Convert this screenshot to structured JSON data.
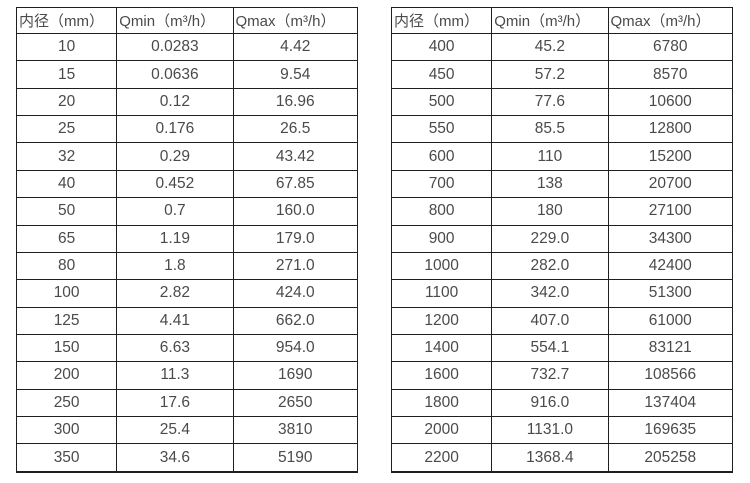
{
  "page": {
    "background_color": "#ffffff",
    "text_color": "#4a4a4a",
    "border_color": "#1f1f1f"
  },
  "tables": [
    {
      "name": "flow-rate-table-left",
      "headers": [
        "内径（mm）",
        "Qmin（m³/h）",
        "Qmax（m³/h）"
      ],
      "rows": [
        [
          "10",
          "0.0283",
          "4.42"
        ],
        [
          "15",
          "0.0636",
          "9.54"
        ],
        [
          "20",
          "0.12",
          "16.96"
        ],
        [
          "25",
          "0.176",
          "26.5"
        ],
        [
          "32",
          "0.29",
          "43.42"
        ],
        [
          "40",
          "0.452",
          "67.85"
        ],
        [
          "50",
          "0.7",
          "160.0"
        ],
        [
          "65",
          "1.19",
          "179.0"
        ],
        [
          "80",
          "1.8",
          "271.0"
        ],
        [
          "100",
          "2.82",
          "424.0"
        ],
        [
          "125",
          "4.41",
          "662.0"
        ],
        [
          "150",
          "6.63",
          "954.0"
        ],
        [
          "200",
          "11.3",
          "1690"
        ],
        [
          "250",
          "17.6",
          "2650"
        ],
        [
          "300",
          "25.4",
          "3810"
        ],
        [
          "350",
          "34.6",
          "5190"
        ]
      ]
    },
    {
      "name": "flow-rate-table-right",
      "headers": [
        "内径（mm）",
        "Qmin（m³/h）",
        "Qmax（m³/h）"
      ],
      "rows": [
        [
          "400",
          "45.2",
          "6780"
        ],
        [
          "450",
          "57.2",
          "8570"
        ],
        [
          "500",
          "77.6",
          "10600"
        ],
        [
          "550",
          "85.5",
          "12800"
        ],
        [
          "600",
          "110",
          "15200"
        ],
        [
          "700",
          "138",
          "20700"
        ],
        [
          "800",
          "180",
          "27100"
        ],
        [
          "900",
          "229.0",
          "34300"
        ],
        [
          "1000",
          "282.0",
          "42400"
        ],
        [
          "1100",
          "342.0",
          "51300"
        ],
        [
          "1200",
          "407.0",
          "61000"
        ],
        [
          "1400",
          "554.1",
          "83121"
        ],
        [
          "1600",
          "732.7",
          "108566"
        ],
        [
          "1800",
          "916.0",
          "137404"
        ],
        [
          "2000",
          "1131.0",
          "169635"
        ],
        [
          "2200",
          "1368.4",
          "205258"
        ]
      ]
    }
  ]
}
